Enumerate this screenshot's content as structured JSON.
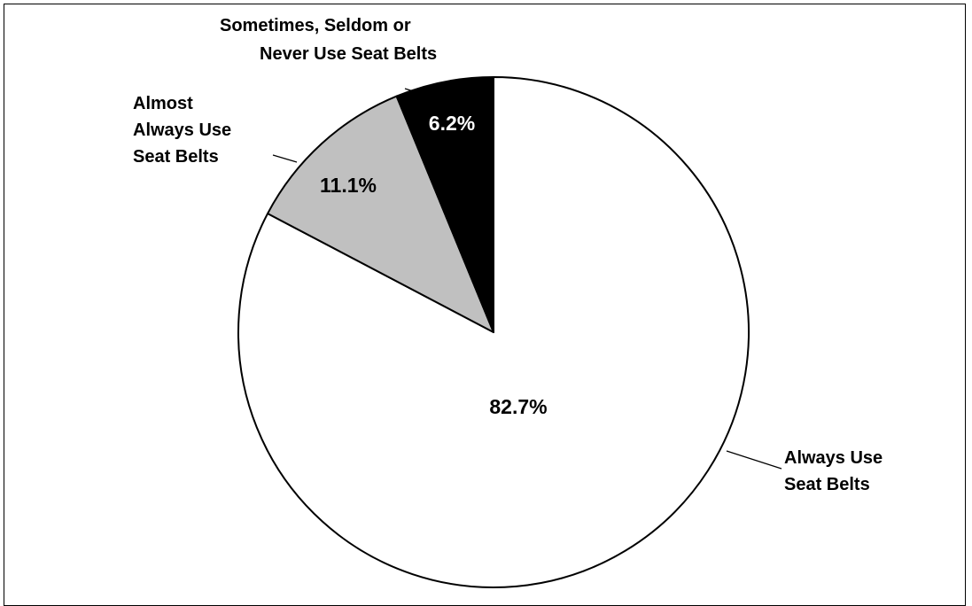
{
  "chart_data": {
    "type": "pie",
    "slices": [
      {
        "label": [
          "Always Use",
          "Seat Belts"
        ],
        "value": 82.7,
        "value_label": "82.7%",
        "color": "#ffffff",
        "text_color": "#000000"
      },
      {
        "label": [
          "Almost",
          "Always Use",
          "Seat Belts"
        ],
        "value": 11.1,
        "value_label": "11.1%",
        "color": "#c0c0c0",
        "text_color": "#000000"
      },
      {
        "label": [
          "Sometimes, Seldom or",
          "Never Use Seat Belts"
        ],
        "value": 6.2,
        "value_label": "6.2%",
        "color": "#000000",
        "text_color": "#ffffff"
      }
    ],
    "start": "top",
    "direction": "clockwise"
  }
}
